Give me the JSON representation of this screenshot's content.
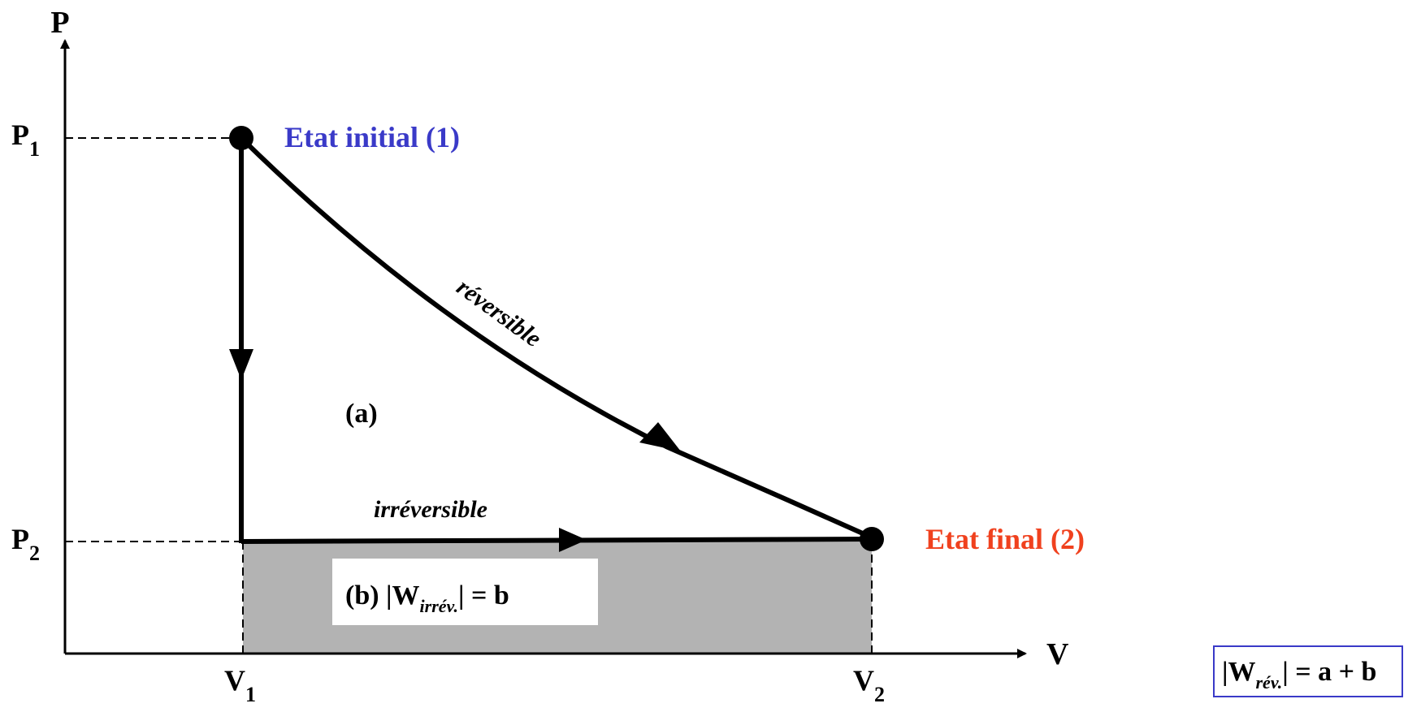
{
  "axes": {
    "y_label": "P",
    "x_label": "V",
    "p1": {
      "base": "P",
      "sub": "1"
    },
    "p2": {
      "base": "P",
      "sub": "2"
    },
    "v1": {
      "base": "V",
      "sub": "1"
    },
    "v2": {
      "base": "V",
      "sub": "2"
    }
  },
  "states": {
    "initial_label": "Etat initial (1)",
    "final_label": "Etat final (2)"
  },
  "paths": {
    "reversible_label": "réversible",
    "irreversible_label": "irréversible"
  },
  "areas": {
    "a_label": "(a)",
    "b_prefix": "(b) |W",
    "b_sub": "irrév.",
    "b_suffix": "| = b"
  },
  "formula": {
    "prefix": "|W",
    "sub": "rév.",
    "suffix": "| = a + b"
  },
  "colors": {
    "initial": "#3a3ac8",
    "final": "#f0411e",
    "shaded_area": "#b3b3b3",
    "formula_border": "#3a3ac8",
    "lines": "#000000"
  }
}
